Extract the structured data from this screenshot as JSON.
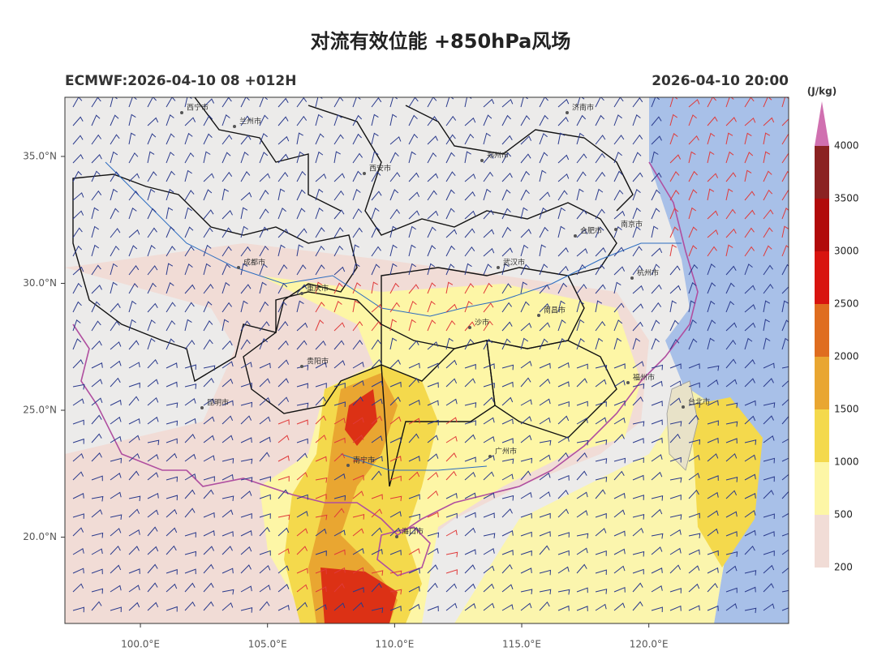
{
  "header": {
    "title": "对流有效位能 +850hPa风场",
    "model_run": "ECMWF:2026-04-10 08 +012H",
    "valid_time": "2026-04-10 20:00"
  },
  "axes": {
    "lon_range": [
      97.03,
      125.5
    ],
    "lat_range": [
      16.6,
      37.33
    ],
    "lat_ticks": [
      {
        "value": 35,
        "label": "35.0°N"
      },
      {
        "value": 30,
        "label": "30.0°N"
      },
      {
        "value": 25,
        "label": "25.0°N"
      },
      {
        "value": 20,
        "label": "20.0°N"
      }
    ],
    "lon_ticks": [
      {
        "value": 100,
        "label": "100.0°E"
      },
      {
        "value": 105,
        "label": "105.0°E"
      },
      {
        "value": 110,
        "label": "110.0°E"
      },
      {
        "value": 115,
        "label": "115.0°E"
      },
      {
        "value": 120,
        "label": "120.0°E"
      }
    ]
  },
  "colorbar": {
    "unit": "(J/kg)",
    "levels": [
      200,
      500,
      1000,
      1500,
      2000,
      2500,
      3000,
      3500,
      4000
    ],
    "colors": [
      "#f1dcd6",
      "#fdf6a6",
      "#f4d94c",
      "#e9a631",
      "#df6d1f",
      "#d8140f",
      "#b10b0b",
      "#8b2222"
    ],
    "extend_color": "#d070b0"
  },
  "places": [
    "西宁市",
    "兰州市",
    "西安市",
    "郑州市",
    "济南市",
    "成都市",
    "重庆市",
    "武汉市",
    "合肥市",
    "南京市",
    "杭州市",
    "南昌市",
    "沙市",
    "贵阳市",
    "昆明市",
    "福州市",
    "台北市",
    "南宁市",
    "广州市",
    "海口市"
  ]
}
